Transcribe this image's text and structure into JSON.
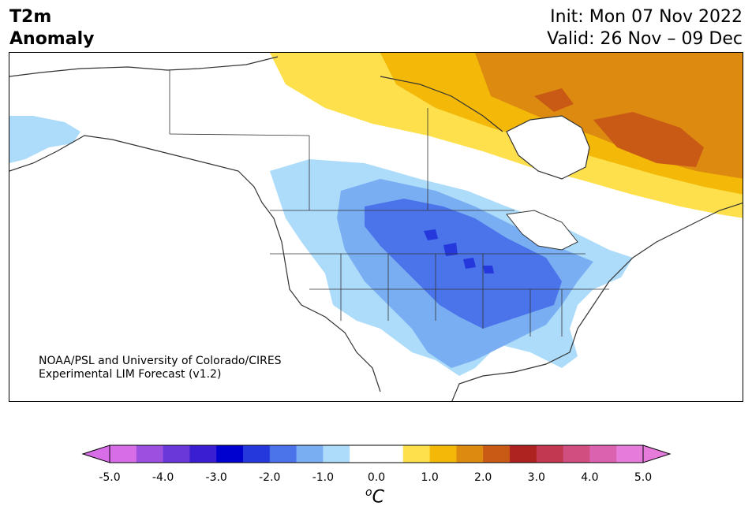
{
  "title": {
    "line1": "T2m",
    "line2": "Anomaly"
  },
  "dates": {
    "init": "Init: Mon 07 Nov 2022",
    "valid": "Valid: 26 Nov – 09 Dec"
  },
  "credit": {
    "line1": "NOAA/PSL and University of Colorado/CIRES",
    "line2": "Experimental LIM Forecast (v1.2)"
  },
  "colorbar": {
    "unit_sup": "o",
    "unit": "C",
    "tick_labels": [
      "-5.0",
      "-4.0",
      "-3.0",
      "-2.0",
      "-1.0",
      "0.0",
      "1.0",
      "2.0",
      "3.0",
      "4.0",
      "5.0"
    ],
    "colors": [
      "#d76ee8",
      "#9d4fe0",
      "#6a38d9",
      "#3a1ed2",
      "#0000cf",
      "#2438dc",
      "#4b74ea",
      "#79aef3",
      "#addcfa",
      "#ffffff",
      "#ffffff",
      "#fde04c",
      "#f3b808",
      "#dd8a10",
      "#c85a16",
      "#ae2220",
      "#c23850",
      "#d04e80",
      "#db62ae",
      "#e77bdb"
    ],
    "under_color": "#d76ee8",
    "over_color": "#e77bdb"
  },
  "regions": [
    {
      "name": "northeast-canada-warm",
      "anomaly_c": 2.5
    },
    {
      "name": "central-us-cold",
      "anomaly_c": -2.5
    },
    {
      "name": "alaska-west-cool",
      "anomaly_c": -1.0
    }
  ]
}
